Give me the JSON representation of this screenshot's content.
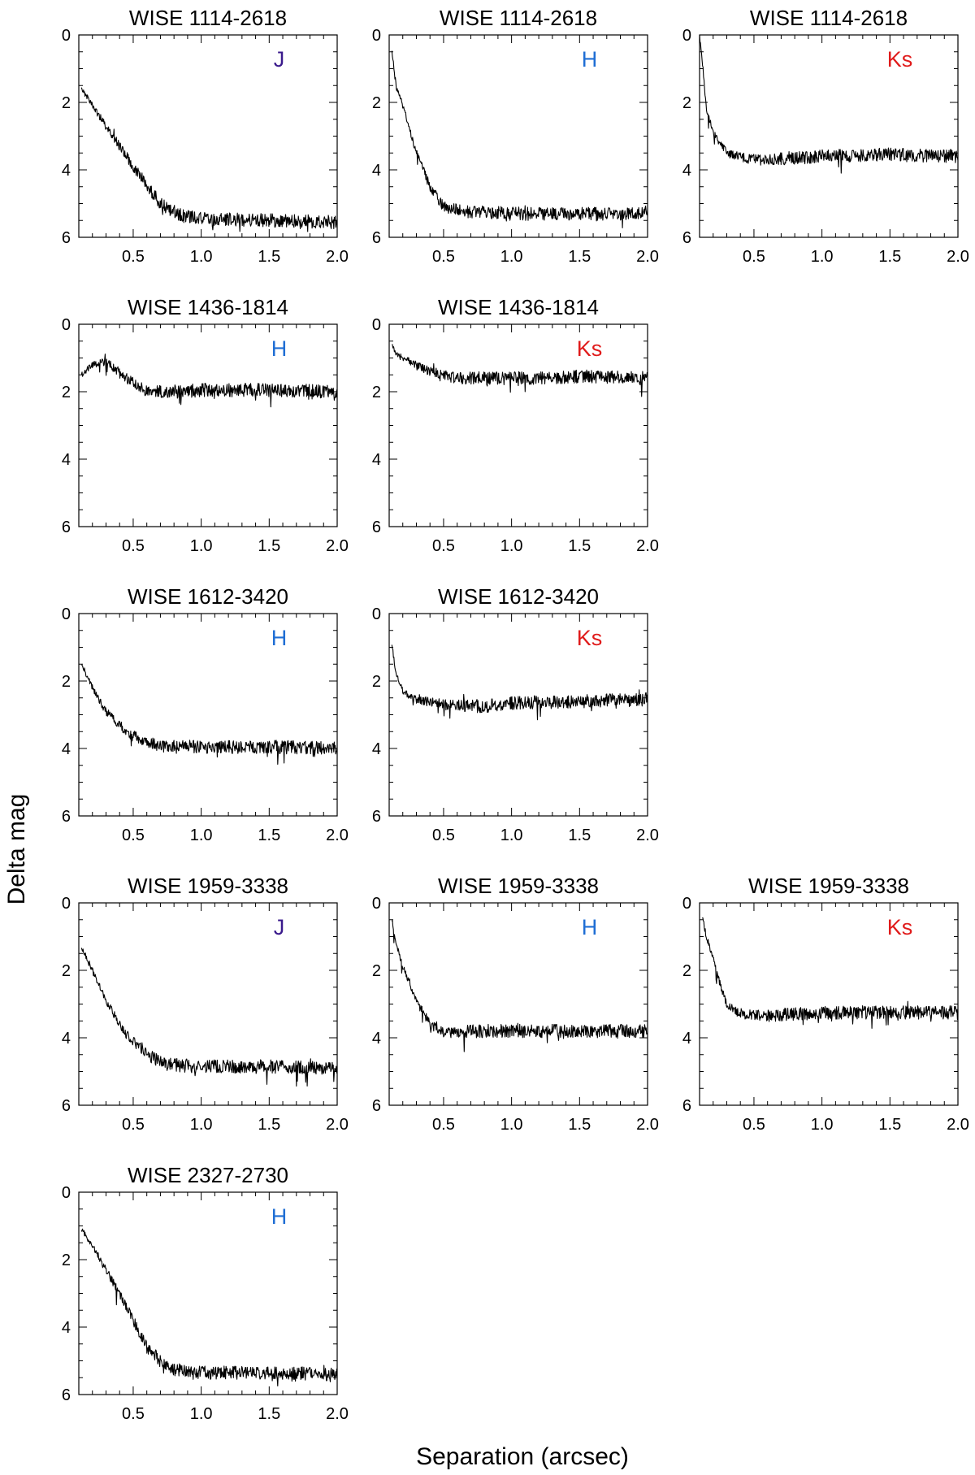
{
  "figure": {
    "ylabel": "Delta mag",
    "xlabel": "Separation (arcsec)"
  },
  "band_colors": {
    "J": "#3a1a8c",
    "H": "#1f6ed4",
    "Ks": "#e01b1b"
  },
  "chart_data": [
    {
      "type": "line",
      "row": 0,
      "col": 0,
      "title": "WISE 1114-2618",
      "band": "J",
      "xlim": [
        0.1,
        2.0
      ],
      "ylim": [
        0,
        6
      ],
      "y_inverted": true,
      "xticks": [
        "0.5",
        "1.0",
        "1.5",
        "2.0"
      ],
      "yticks": [
        "0",
        "2",
        "4",
        "6"
      ],
      "series": [
        {
          "x": [
            0.12,
            0.3,
            0.5,
            0.7,
            0.85,
            1.0,
            1.5,
            2.0
          ],
          "y": [
            1.6,
            2.7,
            3.9,
            5.0,
            5.35,
            5.45,
            5.5,
            5.55
          ]
        }
      ]
    },
    {
      "type": "line",
      "row": 0,
      "col": 1,
      "title": "WISE 1114-2618",
      "band": "H",
      "xlim": [
        0.1,
        2.0
      ],
      "ylim": [
        0,
        6
      ],
      "y_inverted": true,
      "xticks": [
        "0.5",
        "1.0",
        "1.5",
        "2.0"
      ],
      "yticks": [
        "0",
        "2",
        "4",
        "6"
      ],
      "series": [
        {
          "x": [
            0.12,
            0.15,
            0.2,
            0.3,
            0.4,
            0.5,
            0.7,
            1.0,
            1.5,
            2.0
          ],
          "y": [
            0.5,
            1.5,
            2.1,
            3.5,
            4.5,
            5.1,
            5.25,
            5.3,
            5.3,
            5.3
          ]
        }
      ]
    },
    {
      "type": "line",
      "row": 0,
      "col": 2,
      "title": "WISE 1114-2618",
      "band": "Ks",
      "xlim": [
        0.1,
        2.0
      ],
      "ylim": [
        0,
        6
      ],
      "y_inverted": true,
      "xticks": [
        "0.5",
        "1.0",
        "1.5",
        "2.0"
      ],
      "yticks": [
        "0",
        "2",
        "4",
        "6"
      ],
      "series": [
        {
          "x": [
            0.1,
            0.13,
            0.15,
            0.2,
            0.3,
            0.5,
            1.0,
            1.5,
            2.0
          ],
          "y": [
            0.0,
            1.2,
            2.2,
            2.9,
            3.5,
            3.7,
            3.6,
            3.55,
            3.6
          ]
        }
      ]
    },
    {
      "type": "line",
      "row": 1,
      "col": 0,
      "title": "WISE 1436-1814",
      "band": "H",
      "xlim": [
        0.1,
        2.0
      ],
      "ylim": [
        0,
        6
      ],
      "y_inverted": true,
      "xticks": [
        "0.5",
        "1.0",
        "1.5",
        "2.0"
      ],
      "yticks": [
        "0",
        "2",
        "4",
        "6"
      ],
      "series": [
        {
          "x": [
            0.12,
            0.2,
            0.3,
            0.45,
            0.6,
            0.8,
            1.0,
            1.5,
            2.0
          ],
          "y": [
            1.5,
            1.2,
            1.1,
            1.6,
            2.0,
            2.0,
            1.95,
            1.95,
            2.0
          ]
        }
      ]
    },
    {
      "type": "line",
      "row": 1,
      "col": 1,
      "title": "WISE 1436-1814",
      "band": "Ks",
      "xlim": [
        0.1,
        2.0
      ],
      "ylim": [
        0,
        6
      ],
      "y_inverted": true,
      "xticks": [
        "0.5",
        "1.0",
        "1.5",
        "2.0"
      ],
      "yticks": [
        "0",
        "2",
        "4",
        "6"
      ],
      "series": [
        {
          "x": [
            0.12,
            0.15,
            0.2,
            0.3,
            0.4,
            0.6,
            1.0,
            1.5,
            2.0
          ],
          "y": [
            0.6,
            0.9,
            1.0,
            1.2,
            1.4,
            1.6,
            1.6,
            1.55,
            1.6
          ]
        }
      ]
    },
    {
      "type": "line",
      "row": 2,
      "col": 0,
      "title": "WISE 1612-3420",
      "band": "H",
      "xlim": [
        0.1,
        2.0
      ],
      "ylim": [
        0,
        6
      ],
      "y_inverted": true,
      "xticks": [
        "0.5",
        "1.0",
        "1.5",
        "2.0"
      ],
      "yticks": [
        "0",
        "2",
        "4",
        "6"
      ],
      "series": [
        {
          "x": [
            0.12,
            0.2,
            0.3,
            0.45,
            0.6,
            0.8,
            1.0,
            1.5,
            2.0
          ],
          "y": [
            1.5,
            2.2,
            2.9,
            3.5,
            3.85,
            3.95,
            3.95,
            3.95,
            4.0
          ]
        }
      ]
    },
    {
      "type": "line",
      "row": 2,
      "col": 1,
      "title": "WISE 1612-3420",
      "band": "Ks",
      "xlim": [
        0.1,
        2.0
      ],
      "ylim": [
        0,
        6
      ],
      "y_inverted": true,
      "xticks": [
        "0.5",
        "1.0",
        "1.5",
        "2.0"
      ],
      "yticks": [
        "0",
        "2",
        "4",
        "6"
      ],
      "series": [
        {
          "x": [
            0.12,
            0.15,
            0.2,
            0.3,
            0.5,
            0.8,
            1.0,
            1.5,
            2.0
          ],
          "y": [
            0.9,
            1.8,
            2.3,
            2.55,
            2.7,
            2.75,
            2.65,
            2.6,
            2.55
          ]
        }
      ]
    },
    {
      "type": "line",
      "row": 3,
      "col": 0,
      "title": "WISE 1959-3338",
      "band": "J",
      "xlim": [
        0.1,
        2.0
      ],
      "ylim": [
        0,
        6
      ],
      "y_inverted": true,
      "xticks": [
        "0.5",
        "1.0",
        "1.5",
        "2.0"
      ],
      "yticks": [
        "0",
        "2",
        "4",
        "6"
      ],
      "series": [
        {
          "x": [
            0.12,
            0.2,
            0.3,
            0.45,
            0.6,
            0.75,
            1.0,
            1.5,
            2.0
          ],
          "y": [
            1.3,
            2.0,
            2.9,
            3.9,
            4.5,
            4.8,
            4.85,
            4.85,
            4.9
          ]
        }
      ]
    },
    {
      "type": "line",
      "row": 3,
      "col": 1,
      "title": "WISE 1959-3338",
      "band": "H",
      "xlim": [
        0.1,
        2.0
      ],
      "ylim": [
        0,
        6
      ],
      "y_inverted": true,
      "xticks": [
        "0.5",
        "1.0",
        "1.5",
        "2.0"
      ],
      "yticks": [
        "0",
        "2",
        "4",
        "6"
      ],
      "series": [
        {
          "x": [
            0.12,
            0.15,
            0.2,
            0.3,
            0.4,
            0.5,
            0.7,
            1.0,
            1.5,
            2.0
          ],
          "y": [
            0.5,
            1.2,
            1.9,
            2.9,
            3.6,
            3.85,
            3.8,
            3.8,
            3.8,
            3.8
          ]
        }
      ]
    },
    {
      "type": "line",
      "row": 3,
      "col": 2,
      "title": "WISE 1959-3338",
      "band": "Ks",
      "xlim": [
        0.1,
        2.0
      ],
      "ylim": [
        0,
        6
      ],
      "y_inverted": true,
      "xticks": [
        "0.5",
        "1.0",
        "1.5",
        "2.0"
      ],
      "yticks": [
        "0",
        "2",
        "4",
        "6"
      ],
      "series": [
        {
          "x": [
            0.12,
            0.15,
            0.2,
            0.25,
            0.3,
            0.4,
            0.6,
            1.0,
            1.5,
            2.0
          ],
          "y": [
            0.4,
            1.0,
            1.6,
            2.4,
            3.0,
            3.3,
            3.35,
            3.25,
            3.25,
            3.25
          ]
        }
      ]
    },
    {
      "type": "line",
      "row": 4,
      "col": 0,
      "title": "WISE 2327-2730",
      "band": "H",
      "xlim": [
        0.1,
        2.0
      ],
      "ylim": [
        0,
        6
      ],
      "y_inverted": true,
      "xticks": [
        "0.5",
        "1.0",
        "1.5",
        "2.0"
      ],
      "yticks": [
        "0",
        "2",
        "4",
        "6"
      ],
      "series": [
        {
          "x": [
            0.12,
            0.2,
            0.3,
            0.4,
            0.5,
            0.6,
            0.75,
            0.9,
            1.2,
            1.5,
            2.0
          ],
          "y": [
            1.1,
            1.6,
            2.3,
            3.0,
            3.8,
            4.6,
            5.2,
            5.35,
            5.35,
            5.35,
            5.4
          ]
        }
      ]
    }
  ]
}
